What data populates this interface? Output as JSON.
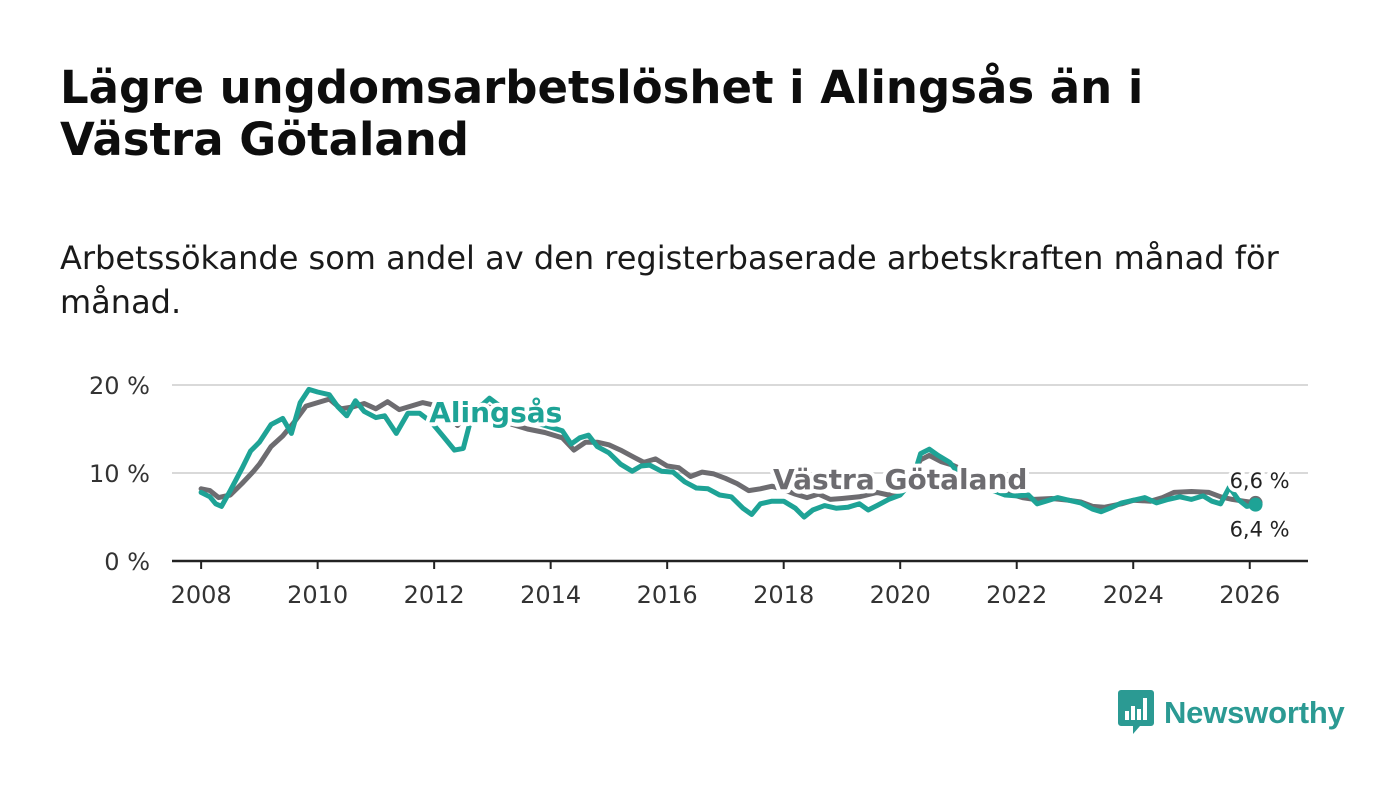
{
  "title": "Lägre ungdomsarbetslöshet i Alingsås än i Västra Götaland",
  "subtitle": "Arbetssökande som andel av den registerbaserade arbetskraften månad för månad.",
  "brand": {
    "name": "Newsworthy",
    "color": "#2b9a93"
  },
  "chart_data": {
    "type": "line",
    "title": "Lägre ungdomsarbetslöshet i Alingsås än i Västra Götaland",
    "xlabel": "",
    "ylabel": "",
    "xlim": [
      2007.5,
      2027.0
    ],
    "ylim": [
      0,
      20
    ],
    "grid": true,
    "x_ticks": [
      2008,
      2010,
      2012,
      2014,
      2016,
      2018,
      2020,
      2022,
      2024,
      2026
    ],
    "x_tick_labels": [
      "2008",
      "2010",
      "2012",
      "2014",
      "2016",
      "2018",
      "2020",
      "2022",
      "2024",
      "2026"
    ],
    "y_ticks": [
      0,
      10,
      20
    ],
    "y_tick_labels": [
      "0 %",
      "10 %",
      "20 %"
    ],
    "series": [
      {
        "name": "Västra Götaland",
        "label": "Västra Götaland",
        "color": "#6d6c70",
        "end_label": "6,6 %",
        "points": [
          [
            2008.0,
            8.2
          ],
          [
            2008.15,
            8.0
          ],
          [
            2008.3,
            7.2
          ],
          [
            2008.5,
            7.5
          ],
          [
            2008.7,
            8.8
          ],
          [
            2008.9,
            10.2
          ],
          [
            2009.0,
            11.0
          ],
          [
            2009.2,
            13.0
          ],
          [
            2009.4,
            14.2
          ],
          [
            2009.6,
            15.8
          ],
          [
            2009.8,
            17.6
          ],
          [
            2010.0,
            18.0
          ],
          [
            2010.2,
            18.4
          ],
          [
            2010.4,
            17.3
          ],
          [
            2010.6,
            17.5
          ],
          [
            2010.8,
            17.9
          ],
          [
            2011.0,
            17.3
          ],
          [
            2011.2,
            18.1
          ],
          [
            2011.4,
            17.2
          ],
          [
            2011.6,
            17.6
          ],
          [
            2011.8,
            18.0
          ],
          [
            2012.0,
            17.7
          ],
          [
            2012.2,
            16.9
          ],
          [
            2012.4,
            15.4
          ],
          [
            2012.6,
            16.9
          ],
          [
            2012.8,
            17.7
          ],
          [
            2013.0,
            17.4
          ],
          [
            2013.3,
            15.6
          ],
          [
            2013.6,
            15.0
          ],
          [
            2013.9,
            14.6
          ],
          [
            2014.2,
            14.0
          ],
          [
            2014.4,
            12.6
          ],
          [
            2014.6,
            13.5
          ],
          [
            2014.8,
            13.5
          ],
          [
            2015.0,
            13.2
          ],
          [
            2015.2,
            12.6
          ],
          [
            2015.4,
            11.9
          ],
          [
            2015.6,
            11.2
          ],
          [
            2015.8,
            11.6
          ],
          [
            2016.0,
            10.8
          ],
          [
            2016.2,
            10.6
          ],
          [
            2016.4,
            9.6
          ],
          [
            2016.6,
            10.1
          ],
          [
            2016.8,
            9.9
          ],
          [
            2017.0,
            9.4
          ],
          [
            2017.2,
            8.8
          ],
          [
            2017.4,
            8.0
          ],
          [
            2017.6,
            8.2
          ],
          [
            2017.8,
            8.5
          ],
          [
            2018.0,
            8.1
          ],
          [
            2018.2,
            7.6
          ],
          [
            2018.4,
            7.2
          ],
          [
            2018.6,
            7.6
          ],
          [
            2018.8,
            7.0
          ],
          [
            2019.0,
            7.1
          ],
          [
            2019.3,
            7.3
          ],
          [
            2019.6,
            7.8
          ],
          [
            2019.8,
            7.5
          ],
          [
            2020.0,
            7.8
          ],
          [
            2020.2,
            9.8
          ],
          [
            2020.35,
            11.5
          ],
          [
            2020.5,
            12.0
          ],
          [
            2020.7,
            11.3
          ],
          [
            2020.9,
            10.9
          ],
          [
            2021.1,
            10.3
          ],
          [
            2021.3,
            9.3
          ],
          [
            2021.5,
            8.6
          ],
          [
            2021.7,
            8.0
          ],
          [
            2021.9,
            7.6
          ],
          [
            2022.1,
            7.2
          ],
          [
            2022.3,
            7.0
          ],
          [
            2022.6,
            7.1
          ],
          [
            2022.9,
            6.9
          ],
          [
            2023.1,
            6.7
          ],
          [
            2023.3,
            6.2
          ],
          [
            2023.5,
            6.1
          ],
          [
            2023.8,
            6.5
          ],
          [
            2024.0,
            6.9
          ],
          [
            2024.3,
            6.8
          ],
          [
            2024.5,
            7.2
          ],
          [
            2024.7,
            7.8
          ],
          [
            2025.0,
            7.9
          ],
          [
            2025.3,
            7.8
          ],
          [
            2025.5,
            7.3
          ],
          [
            2025.7,
            7.0
          ],
          [
            2025.9,
            6.8
          ],
          [
            2026.1,
            6.6
          ]
        ]
      },
      {
        "name": "Alingsås",
        "label": "Alingsås",
        "color": "#1ea396",
        "end_label": "6,4 %",
        "points": [
          [
            2008.0,
            7.8
          ],
          [
            2008.15,
            7.3
          ],
          [
            2008.25,
            6.5
          ],
          [
            2008.35,
            6.2
          ],
          [
            2008.5,
            8.0
          ],
          [
            2008.7,
            10.5
          ],
          [
            2008.85,
            12.5
          ],
          [
            2009.0,
            13.5
          ],
          [
            2009.2,
            15.5
          ],
          [
            2009.4,
            16.2
          ],
          [
            2009.55,
            14.5
          ],
          [
            2009.7,
            18.0
          ],
          [
            2009.85,
            19.5
          ],
          [
            2010.0,
            19.2
          ],
          [
            2010.2,
            18.9
          ],
          [
            2010.35,
            17.5
          ],
          [
            2010.5,
            16.5
          ],
          [
            2010.65,
            18.2
          ],
          [
            2010.8,
            17.0
          ],
          [
            2011.0,
            16.3
          ],
          [
            2011.15,
            16.5
          ],
          [
            2011.35,
            14.5
          ],
          [
            2011.55,
            16.8
          ],
          [
            2011.75,
            16.8
          ],
          [
            2011.95,
            15.8
          ],
          [
            2012.15,
            14.2
          ],
          [
            2012.35,
            12.6
          ],
          [
            2012.5,
            12.8
          ],
          [
            2012.65,
            16.6
          ],
          [
            2012.8,
            17.6
          ],
          [
            2012.95,
            18.5
          ],
          [
            2013.15,
            17.5
          ],
          [
            2013.4,
            16.5
          ],
          [
            2013.7,
            15.8
          ],
          [
            2014.0,
            15.2
          ],
          [
            2014.2,
            14.8
          ],
          [
            2014.35,
            13.3
          ],
          [
            2014.5,
            14.0
          ],
          [
            2014.65,
            14.3
          ],
          [
            2014.8,
            13.0
          ],
          [
            2015.0,
            12.3
          ],
          [
            2015.2,
            11.0
          ],
          [
            2015.4,
            10.2
          ],
          [
            2015.55,
            10.8
          ],
          [
            2015.7,
            10.9
          ],
          [
            2015.9,
            10.2
          ],
          [
            2016.1,
            10.1
          ],
          [
            2016.3,
            9.0
          ],
          [
            2016.5,
            8.3
          ],
          [
            2016.7,
            8.2
          ],
          [
            2016.9,
            7.5
          ],
          [
            2017.1,
            7.3
          ],
          [
            2017.3,
            6.0
          ],
          [
            2017.45,
            5.3
          ],
          [
            2017.6,
            6.5
          ],
          [
            2017.8,
            6.8
          ],
          [
            2018.0,
            6.8
          ],
          [
            2018.2,
            6.0
          ],
          [
            2018.35,
            5.0
          ],
          [
            2018.5,
            5.8
          ],
          [
            2018.7,
            6.3
          ],
          [
            2018.9,
            6.0
          ],
          [
            2019.1,
            6.1
          ],
          [
            2019.3,
            6.5
          ],
          [
            2019.45,
            5.8
          ],
          [
            2019.6,
            6.3
          ],
          [
            2019.8,
            7.0
          ],
          [
            2020.0,
            7.5
          ],
          [
            2020.2,
            9.0
          ],
          [
            2020.35,
            12.2
          ],
          [
            2020.5,
            12.7
          ],
          [
            2020.65,
            12.0
          ],
          [
            2020.85,
            11.2
          ],
          [
            2021.0,
            10.0
          ],
          [
            2021.2,
            9.2
          ],
          [
            2021.4,
            8.5
          ],
          [
            2021.6,
            8.0
          ],
          [
            2021.8,
            7.5
          ],
          [
            2022.0,
            7.4
          ],
          [
            2022.2,
            7.5
          ],
          [
            2022.35,
            6.5
          ],
          [
            2022.5,
            6.8
          ],
          [
            2022.7,
            7.2
          ],
          [
            2022.9,
            6.9
          ],
          [
            2023.1,
            6.6
          ],
          [
            2023.3,
            5.9
          ],
          [
            2023.45,
            5.6
          ],
          [
            2023.6,
            6.0
          ],
          [
            2023.8,
            6.6
          ],
          [
            2024.0,
            6.9
          ],
          [
            2024.2,
            7.2
          ],
          [
            2024.4,
            6.6
          ],
          [
            2024.6,
            7.0
          ],
          [
            2024.8,
            7.3
          ],
          [
            2025.0,
            7.0
          ],
          [
            2025.2,
            7.4
          ],
          [
            2025.35,
            6.8
          ],
          [
            2025.5,
            6.5
          ],
          [
            2025.65,
            8.4
          ],
          [
            2025.8,
            7.0
          ],
          [
            2025.95,
            6.2
          ],
          [
            2026.1,
            6.4
          ]
        ]
      }
    ]
  }
}
